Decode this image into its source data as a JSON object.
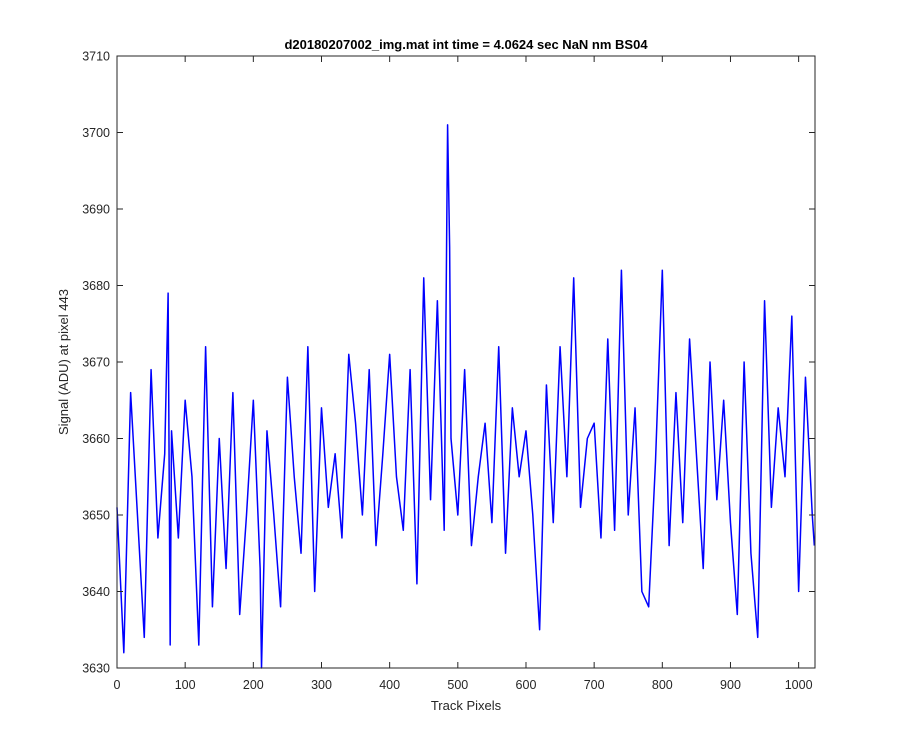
{
  "chart_data": {
    "type": "line",
    "title": "d20180207002_img.mat int time = 4.0624 sec  NaN nm BS04",
    "xlabel": "Track Pixels",
    "ylabel": "Signal (ADU) at pixel 443",
    "xlim": [
      0,
      1024
    ],
    "ylim": [
      3630,
      3710
    ],
    "xticks": [
      0,
      100,
      200,
      300,
      400,
      500,
      600,
      700,
      800,
      900,
      1000
    ],
    "yticks": [
      3630,
      3640,
      3650,
      3660,
      3670,
      3680,
      3690,
      3700,
      3710
    ],
    "grid": false,
    "line_color": "#0000ff",
    "series": [
      {
        "x": [
          0,
          10,
          20,
          30,
          40,
          50,
          60,
          70,
          75,
          78,
          80,
          90,
          100,
          110,
          120,
          130,
          140,
          150,
          160,
          170,
          180,
          190,
          200,
          210,
          212,
          220,
          230,
          240,
          250,
          260,
          270,
          280,
          290,
          300,
          310,
          320,
          330,
          340,
          350,
          360,
          370,
          380,
          390,
          400,
          410,
          420,
          430,
          440,
          450,
          460,
          470,
          480,
          485,
          488,
          490,
          500,
          510,
          520,
          530,
          540,
          550,
          560,
          570,
          580,
          590,
          600,
          610,
          620,
          630,
          640,
          650,
          660,
          670,
          680,
          690,
          700,
          710,
          720,
          730,
          740,
          750,
          760,
          770,
          780,
          790,
          800,
          810,
          820,
          830,
          840,
          850,
          860,
          870,
          880,
          890,
          900,
          910,
          920,
          930,
          940,
          950,
          960,
          970,
          980,
          990,
          1000,
          1010,
          1020,
          1023
        ],
        "y": [
          3651,
          3632,
          3666,
          3650,
          3634,
          3669,
          3647,
          3658,
          3679,
          3633,
          3661,
          3647,
          3665,
          3655,
          3633,
          3672,
          3638,
          3660,
          3643,
          3666,
          3637,
          3650,
          3665,
          3643,
          3630,
          3661,
          3650,
          3638,
          3668,
          3655,
          3645,
          3672,
          3640,
          3664,
          3651,
          3658,
          3647,
          3671,
          3662,
          3650,
          3669,
          3646,
          3658,
          3671,
          3655,
          3648,
          3669,
          3641,
          3681,
          3652,
          3678,
          3648,
          3701,
          3685,
          3660,
          3650,
          3669,
          3646,
          3655,
          3662,
          3649,
          3672,
          3645,
          3664,
          3655,
          3661,
          3650,
          3635,
          3667,
          3649,
          3672,
          3655,
          3681,
          3651,
          3660,
          3662,
          3647,
          3673,
          3648,
          3682,
          3650,
          3664,
          3640,
          3638,
          3657,
          3682,
          3646,
          3666,
          3649,
          3673,
          3658,
          3643,
          3670,
          3652,
          3665,
          3649,
          3637,
          3670,
          3645,
          3634,
          3678,
          3651,
          3664,
          3655,
          3676,
          3640,
          3668,
          3650,
          3646
        ]
      }
    ]
  }
}
